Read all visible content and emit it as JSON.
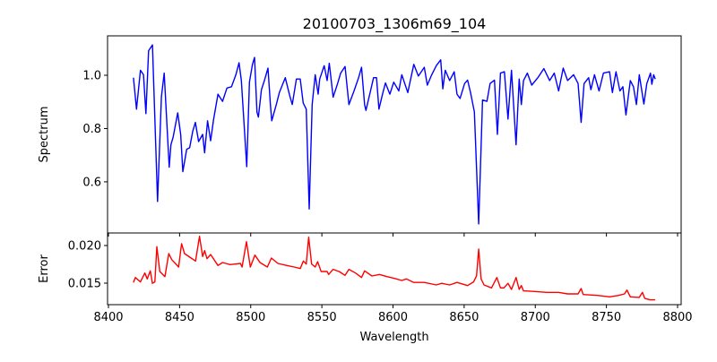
{
  "chart_data": [
    {
      "type": "line",
      "title": "20100703_1306m69_104",
      "xlabel": "",
      "ylabel": "Spectrum",
      "xlim": [
        8400,
        8805
      ],
      "ylim": [
        0.408,
        1.148
      ],
      "xticks": [
        8400,
        8450,
        8500,
        8550,
        8600,
        8650,
        8700,
        8750,
        8800
      ],
      "yticks": [
        0.6,
        0.8,
        1.0
      ],
      "ytick_labels": [
        "0.6",
        "0.8",
        "1.0"
      ],
      "grid": false,
      "color": "#0000ff",
      "series": [
        {
          "name": "Spectrum",
          "points": [
            [
              8417.6,
              0.991
            ],
            [
              8419.7,
              0.873
            ],
            [
              8422.5,
              1.019
            ],
            [
              8424.6,
              1.002
            ],
            [
              8426.3,
              0.856
            ],
            [
              8428.2,
              1.092
            ],
            [
              8430.9,
              1.114
            ],
            [
              8434.5,
              0.526
            ],
            [
              8437.2,
              0.919
            ],
            [
              8439.2,
              1.008
            ],
            [
              8442.7,
              0.655
            ],
            [
              8443.9,
              0.739
            ],
            [
              8445.5,
              0.768
            ],
            [
              8448.7,
              0.859
            ],
            [
              8450.8,
              0.778
            ],
            [
              8452.3,
              0.638
            ],
            [
              8455.0,
              0.722
            ],
            [
              8457.1,
              0.728
            ],
            [
              8459.2,
              0.789
            ],
            [
              8461.1,
              0.823
            ],
            [
              8463.4,
              0.751
            ],
            [
              8466.2,
              0.778
            ],
            [
              8467.6,
              0.709
            ],
            [
              8469.7,
              0.829
            ],
            [
              8471.8,
              0.754
            ],
            [
              8473.9,
              0.834
            ],
            [
              8477.0,
              0.929
            ],
            [
              8480.2,
              0.902
            ],
            [
              8483.3,
              0.952
            ],
            [
              8486.5,
              0.957
            ],
            [
              8489.6,
              1.002
            ],
            [
              8491.8,
              1.047
            ],
            [
              8493.4,
              0.98
            ],
            [
              8497.2,
              0.657
            ],
            [
              8499.1,
              0.974
            ],
            [
              8501.2,
              1.041
            ],
            [
              8502.7,
              1.067
            ],
            [
              8504.4,
              0.862
            ],
            [
              8505.4,
              0.843
            ],
            [
              8507.5,
              0.946
            ],
            [
              8509.6,
              0.98
            ],
            [
              8512.1,
              1.027
            ],
            [
              8513.8,
              0.89
            ],
            [
              8514.8,
              0.829
            ],
            [
              8518.0,
              0.89
            ],
            [
              8520.1,
              0.935
            ],
            [
              8524.3,
              0.991
            ],
            [
              8527.4,
              0.924
            ],
            [
              8529.2,
              0.89
            ],
            [
              8532.1,
              0.986
            ],
            [
              8534.8,
              0.986
            ],
            [
              8536.9,
              0.896
            ],
            [
              8539.0,
              0.873
            ],
            [
              8541.1,
              0.498
            ],
            [
              8543.2,
              0.89
            ],
            [
              8545.3,
              1.002
            ],
            [
              8547.4,
              0.929
            ],
            [
              8548.5,
              0.986
            ],
            [
              8551.6,
              1.036
            ],
            [
              8553.7,
              0.98
            ],
            [
              8555.2,
              1.045
            ],
            [
              8557.9,
              0.918
            ],
            [
              8561.1,
              0.969
            ],
            [
              8563.2,
              1.008
            ],
            [
              8566.3,
              1.033
            ],
            [
              8569.0,
              0.89
            ],
            [
              8572.6,
              0.941
            ],
            [
              8575.8,
              0.991
            ],
            [
              8577.9,
              1.03
            ],
            [
              8580.0,
              0.89
            ],
            [
              8581.0,
              0.868
            ],
            [
              8584.2,
              0.941
            ],
            [
              8586.3,
              0.991
            ],
            [
              8588.4,
              0.991
            ],
            [
              8590.1,
              0.873
            ],
            [
              8592.6,
              0.929
            ],
            [
              8594.7,
              0.971
            ],
            [
              8597.8,
              0.929
            ],
            [
              8600.5,
              0.974
            ],
            [
              8604.1,
              0.941
            ],
            [
              8606.2,
              1.002
            ],
            [
              8610.4,
              0.935
            ],
            [
              8614.6,
              1.041
            ],
            [
              8617.8,
              0.997
            ],
            [
              8622.0,
              1.03
            ],
            [
              8624.1,
              0.963
            ],
            [
              8627.2,
              1.002
            ],
            [
              8630.4,
              1.036
            ],
            [
              8633.5,
              1.058
            ],
            [
              8635.0,
              0.949
            ],
            [
              8636.7,
              1.019
            ],
            [
              8639.8,
              0.98
            ],
            [
              8643.0,
              1.013
            ],
            [
              8645.0,
              0.929
            ],
            [
              8647.1,
              0.913
            ],
            [
              8650.3,
              0.969
            ],
            [
              8652.4,
              0.982
            ],
            [
              8654.5,
              0.935
            ],
            [
              8657.2,
              0.862
            ],
            [
              8660.2,
              0.442
            ],
            [
              8662.9,
              0.907
            ],
            [
              8666.0,
              0.902
            ],
            [
              8668.2,
              0.969
            ],
            [
              8671.3,
              0.982
            ],
            [
              8673.4,
              0.778
            ],
            [
              8675.5,
              1.008
            ],
            [
              8678.3,
              1.013
            ],
            [
              8680.8,
              0.836
            ],
            [
              8683.3,
              1.019
            ],
            [
              8686.5,
              0.739
            ],
            [
              8688.7,
              0.986
            ],
            [
              8690.2,
              0.89
            ],
            [
              8691.7,
              0.98
            ],
            [
              8694.4,
              1.008
            ],
            [
              8697.5,
              0.963
            ],
            [
              8701.8,
              0.991
            ],
            [
              8706.0,
              1.025
            ],
            [
              8710.1,
              0.98
            ],
            [
              8713.3,
              1.008
            ],
            [
              8716.4,
              0.941
            ],
            [
              8719.6,
              1.027
            ],
            [
              8722.7,
              0.98
            ],
            [
              8726.9,
              1.002
            ],
            [
              8730.1,
              0.969
            ],
            [
              8732.2,
              0.823
            ],
            [
              8734.3,
              0.969
            ],
            [
              8737.5,
              0.991
            ],
            [
              8739.1,
              0.946
            ],
            [
              8741.6,
              1.002
            ],
            [
              8744.8,
              0.941
            ],
            [
              8747.9,
              1.008
            ],
            [
              8752.2,
              1.013
            ],
            [
              8754.2,
              0.935
            ],
            [
              8756.7,
              1.013
            ],
            [
              8759.5,
              0.941
            ],
            [
              8761.6,
              0.957
            ],
            [
              8763.7,
              0.851
            ],
            [
              8766.8,
              0.98
            ],
            [
              8769.0,
              0.957
            ],
            [
              8771.1,
              0.89
            ],
            [
              8773.1,
              1.002
            ],
            [
              8776.3,
              0.892
            ],
            [
              8778.4,
              0.969
            ],
            [
              8781.0,
              1.008
            ],
            [
              8781.9,
              0.966
            ],
            [
              8783.2,
              1.002
            ],
            [
              8784.3,
              0.986
            ]
          ]
        }
      ]
    },
    {
      "type": "line",
      "title": "",
      "xlabel": "Wavelength",
      "ylabel": "Error",
      "xlim": [
        8400,
        8805
      ],
      "ylim": [
        0.01214,
        0.02167
      ],
      "xticks": [
        8400,
        8450,
        8500,
        8550,
        8600,
        8650,
        8700,
        8750,
        8800
      ],
      "xtick_labels": [
        "8400",
        "8450",
        "8500",
        "8550",
        "8600",
        "8650",
        "8700",
        "8750",
        "8800"
      ],
      "yticks": [
        0.015,
        0.02
      ],
      "ytick_labels": [
        "0.015",
        "0.020"
      ],
      "grid": false,
      "color": "#ff0000",
      "series": [
        {
          "name": "Error",
          "points": [
            [
              8417.6,
              0.01509
            ],
            [
              8418.9,
              0.01575
            ],
            [
              8422.5,
              0.01516
            ],
            [
              8425.6,
              0.01635
            ],
            [
              8427.3,
              0.01556
            ],
            [
              8429.4,
              0.01663
            ],
            [
              8430.9,
              0.01497
            ],
            [
              8432.6,
              0.01516
            ],
            [
              8434.0,
              0.01985
            ],
            [
              8436.1,
              0.01655
            ],
            [
              8439.7,
              0.01587
            ],
            [
              8442.4,
              0.01893
            ],
            [
              8444.5,
              0.01813
            ],
            [
              8449.3,
              0.01714
            ],
            [
              8451.4,
              0.02024
            ],
            [
              8453.5,
              0.01893
            ],
            [
              8458.1,
              0.01833
            ],
            [
              8461.2,
              0.01794
            ],
            [
              8464.0,
              0.02123
            ],
            [
              8466.2,
              0.01854
            ],
            [
              8467.6,
              0.01932
            ],
            [
              8469.3,
              0.01825
            ],
            [
              8471.8,
              0.01881
            ],
            [
              8477.0,
              0.01735
            ],
            [
              8480.2,
              0.01774
            ],
            [
              8485.5,
              0.01747
            ],
            [
              8492.8,
              0.01762
            ],
            [
              8493.9,
              0.01714
            ],
            [
              8497.0,
              0.02051
            ],
            [
              8499.7,
              0.01714
            ],
            [
              8502.9,
              0.01873
            ],
            [
              8506.5,
              0.01774
            ],
            [
              8511.7,
              0.01714
            ],
            [
              8514.5,
              0.01833
            ],
            [
              8519.1,
              0.01762
            ],
            [
              8525.4,
              0.01735
            ],
            [
              8530.6,
              0.01714
            ],
            [
              8534.8,
              0.01694
            ],
            [
              8537.0,
              0.01794
            ],
            [
              8539.0,
              0.01754
            ],
            [
              8540.7,
              0.02111
            ],
            [
              8542.8,
              0.01754
            ],
            [
              8545.3,
              0.01714
            ],
            [
              8547.0,
              0.01786
            ],
            [
              8549.5,
              0.01655
            ],
            [
              8553.7,
              0.01655
            ],
            [
              8554.8,
              0.01616
            ],
            [
              8557.9,
              0.01683
            ],
            [
              8562.1,
              0.01655
            ],
            [
              8566.3,
              0.01604
            ],
            [
              8569.0,
              0.01683
            ],
            [
              8573.7,
              0.01635
            ],
            [
              8577.9,
              0.01575
            ],
            [
              8580.0,
              0.01663
            ],
            [
              8585.2,
              0.01595
            ],
            [
              8590.4,
              0.01616
            ],
            [
              8595.7,
              0.01587
            ],
            [
              8601.0,
              0.01563
            ],
            [
              8606.2,
              0.01536
            ],
            [
              8609.4,
              0.01556
            ],
            [
              8614.6,
              0.01509
            ],
            [
              8622.0,
              0.01509
            ],
            [
              8630.4,
              0.01476
            ],
            [
              8634.2,
              0.01497
            ],
            [
              8639.8,
              0.01476
            ],
            [
              8645.0,
              0.01509
            ],
            [
              8652.4,
              0.01468
            ],
            [
              8656.6,
              0.01516
            ],
            [
              8658.7,
              0.01595
            ],
            [
              8660.2,
              0.01952
            ],
            [
              8661.9,
              0.01556
            ],
            [
              8664.0,
              0.01476
            ],
            [
              8669.2,
              0.01437
            ],
            [
              8673.0,
              0.01575
            ],
            [
              8675.5,
              0.01437
            ],
            [
              8678.0,
              0.01437
            ],
            [
              8680.8,
              0.01497
            ],
            [
              8683.3,
              0.01417
            ],
            [
              8686.5,
              0.01575
            ],
            [
              8688.7,
              0.01417
            ],
            [
              8690.2,
              0.01468
            ],
            [
              8691.7,
              0.01397
            ],
            [
              8699.6,
              0.01389
            ],
            [
              8708.1,
              0.01377
            ],
            [
              8716.4,
              0.01377
            ],
            [
              8722.7,
              0.01357
            ],
            [
              8730.1,
              0.01357
            ],
            [
              8732.2,
              0.01429
            ],
            [
              8733.7,
              0.01349
            ],
            [
              8743.8,
              0.01337
            ],
            [
              8752.2,
              0.01318
            ],
            [
              8758.5,
              0.01337
            ],
            [
              8762.7,
              0.01357
            ],
            [
              8764.4,
              0.01408
            ],
            [
              8766.8,
              0.01318
            ],
            [
              8773.1,
              0.0131
            ],
            [
              8775.3,
              0.01377
            ],
            [
              8776.9,
              0.01298
            ],
            [
              8780.5,
              0.01278
            ],
            [
              8784.3,
              0.01278
            ]
          ]
        }
      ]
    }
  ]
}
